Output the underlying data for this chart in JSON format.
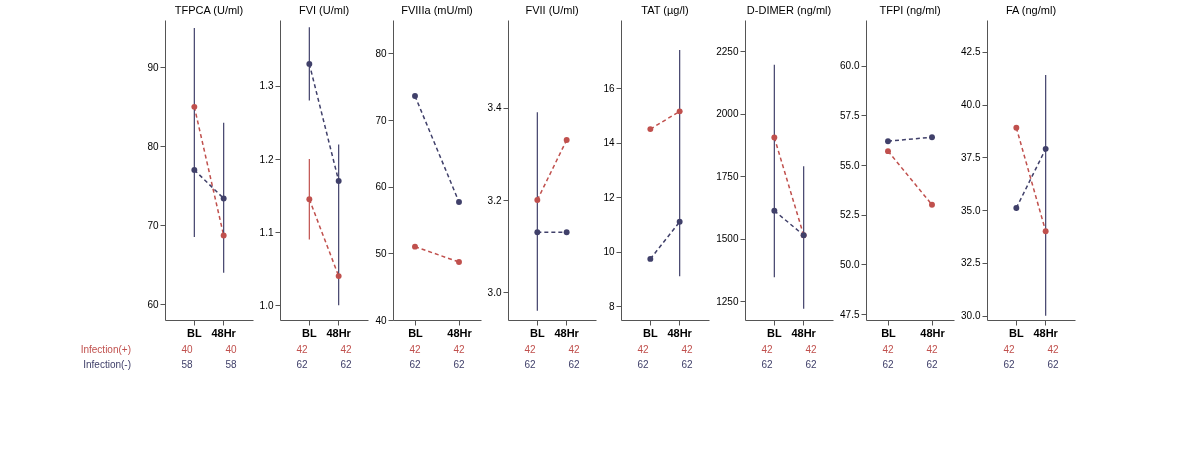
{
  "chart_data": [
    {
      "type": "line",
      "title": "TFPCA (U/ml)",
      "categories": [
        "BL",
        "48Hr"
      ],
      "ylim": [
        58,
        96
      ],
      "yticks": [
        60,
        70,
        80,
        90
      ],
      "line_style": "dashed",
      "marker": "circle",
      "grid": false,
      "series": [
        {
          "color": "#c0504d",
          "values": [
            85,
            68.7
          ]
        },
        {
          "color": "#40406a",
          "values": [
            77,
            73.4
          ],
          "errors": [
            [
              68.5,
              95
            ],
            [
              64,
              83
            ]
          ]
        }
      ],
      "annotations": [
        "Infection(+)",
        "40",
        "40",
        "Infection(-)",
        "58",
        "58"
      ]
    },
    {
      "type": "line",
      "title": "FVI (U/ml)",
      "categories": [
        "BL",
        "48Hr"
      ],
      "ylim": [
        0.98,
        1.39
      ],
      "yticks": [
        {
          "value": 1.0,
          "label": "1.0"
        },
        1.1,
        1.2,
        1.3
      ],
      "line_style": "dashed",
      "marker": "circle",
      "grid": false,
      "series": [
        {
          "color": "#c0504d",
          "values": [
            1.145,
            1.04
          ],
          "errors": [
            [
              1.09,
              1.2
            ],
            null
          ]
        },
        {
          "color": "#40406a",
          "values": [
            1.33,
            1.17
          ],
          "errors": [
            [
              1.28,
              1.38
            ],
            [
              1.0,
              1.22
            ]
          ]
        }
      ],
      "annotations": [
        "42",
        "42",
        "62",
        "62"
      ]
    },
    {
      "type": "line",
      "title": "FVIIIa (mU/ml)",
      "categories": [
        "BL",
        "48Hr"
      ],
      "ylim": [
        40,
        85
      ],
      "yticks": [
        40,
        50,
        60,
        70,
        80
      ],
      "line_style": "dashed",
      "marker": "circle",
      "grid": false,
      "series": [
        {
          "color": "#c0504d",
          "values": [
            51,
            48.7
          ]
        },
        {
          "color": "#40406a",
          "values": [
            73.6,
            57.7
          ]
        }
      ],
      "annotations": [
        "42",
        "42",
        "62",
        "62"
      ]
    },
    {
      "type": "line",
      "title": "FVII (U/ml)",
      "categories": [
        "BL",
        "48Hr"
      ],
      "ylim": [
        2.94,
        3.59
      ],
      "yticks": [
        {
          "value": 3.0,
          "label": "3.0"
        },
        3.2,
        3.4
      ],
      "line_style": "dashed",
      "marker": "circle",
      "grid": false,
      "series": [
        {
          "color": "#c0504d",
          "values": [
            3.2,
            3.33
          ]
        },
        {
          "color": "#40406a",
          "values": [
            3.13,
            3.13
          ],
          "errors": [
            [
              2.96,
              3.39
            ],
            null
          ]
        }
      ],
      "annotations": [
        "42",
        "42",
        "62",
        "62"
      ]
    },
    {
      "type": "line",
      "title": "TAT (µg/l)",
      "categories": [
        "BL",
        "48Hr"
      ],
      "ylim": [
        7.5,
        18.5
      ],
      "yticks": [
        8,
        10,
        12,
        14,
        16
      ],
      "line_style": "dashed",
      "marker": "circle",
      "grid": false,
      "series": [
        {
          "color": "#c0504d",
          "values": [
            14.5,
            15.15
          ]
        },
        {
          "color": "#40406a",
          "values": [
            9.74,
            11.1
          ],
          "errors": [
            null,
            [
              9.1,
              17.4
            ]
          ]
        }
      ],
      "annotations": [
        "42",
        "42",
        "62",
        "62"
      ]
    },
    {
      "type": "line",
      "title": "D-DIMER (ng/ml)",
      "categories": [
        "BL",
        "48Hr"
      ],
      "ylim": [
        1175,
        2375
      ],
      "yticks": [
        1250,
        1500,
        1750,
        2000,
        2250
      ],
      "line_style": "dashed",
      "marker": "circle",
      "grid": false,
      "series": [
        {
          "color": "#c0504d",
          "values": [
            1905,
            1514
          ]
        },
        {
          "color": "#40406a",
          "values": [
            1612,
            1514
          ],
          "errors": [
            [
              1346,
              2196
            ],
            [
              1220,
              1790
            ]
          ]
        }
      ],
      "annotations": [
        "42",
        "42",
        "62",
        "62"
      ]
    },
    {
      "type": "line",
      "title": "TFPI (ng/ml)",
      "categories": [
        "BL",
        "48Hr"
      ],
      "ylim": [
        47.2,
        62.3
      ],
      "yticks": [
        {
          "value": 47.5,
          "label": "47.5"
        },
        {
          "value": 50,
          "label": "50.0"
        },
        {
          "value": 52.5,
          "label": "52.5"
        },
        {
          "value": 55,
          "label": "55.0"
        },
        {
          "value": 57.5,
          "label": "57.5"
        },
        {
          "value": 60,
          "label": "60.0"
        }
      ],
      "line_style": "dashed",
      "marker": "circle",
      "grid": false,
      "series": [
        {
          "color": "#c0504d",
          "values": [
            55.7,
            53.0
          ]
        },
        {
          "color": "#40406a",
          "values": [
            56.2,
            56.4
          ]
        }
      ],
      "annotations": [
        "42",
        "42",
        "62",
        "62"
      ]
    },
    {
      "type": "line",
      "title": "FA (ng/ml)",
      "categories": [
        "BL",
        "48Hr"
      ],
      "ylim": [
        29.8,
        44
      ],
      "yticks": [
        {
          "value": 30,
          "label": "30.0"
        },
        {
          "value": 32.5,
          "label": "32.5"
        },
        {
          "value": 35,
          "label": "35.0"
        },
        {
          "value": 37.5,
          "label": "37.5"
        },
        {
          "value": 40,
          "label": "40.0"
        },
        {
          "value": 42.5,
          "label": "42.5"
        }
      ],
      "line_style": "dashed",
      "marker": "circle",
      "grid": false,
      "series": [
        {
          "color": "#c0504d",
          "values": [
            38.9,
            34.0
          ]
        },
        {
          "color": "#40406a",
          "values": [
            35.1,
            37.9
          ],
          "errors": [
            null,
            [
              30,
              41.4
            ]
          ]
        }
      ],
      "annotations": [
        "42",
        "42",
        "62",
        "62"
      ]
    }
  ]
}
